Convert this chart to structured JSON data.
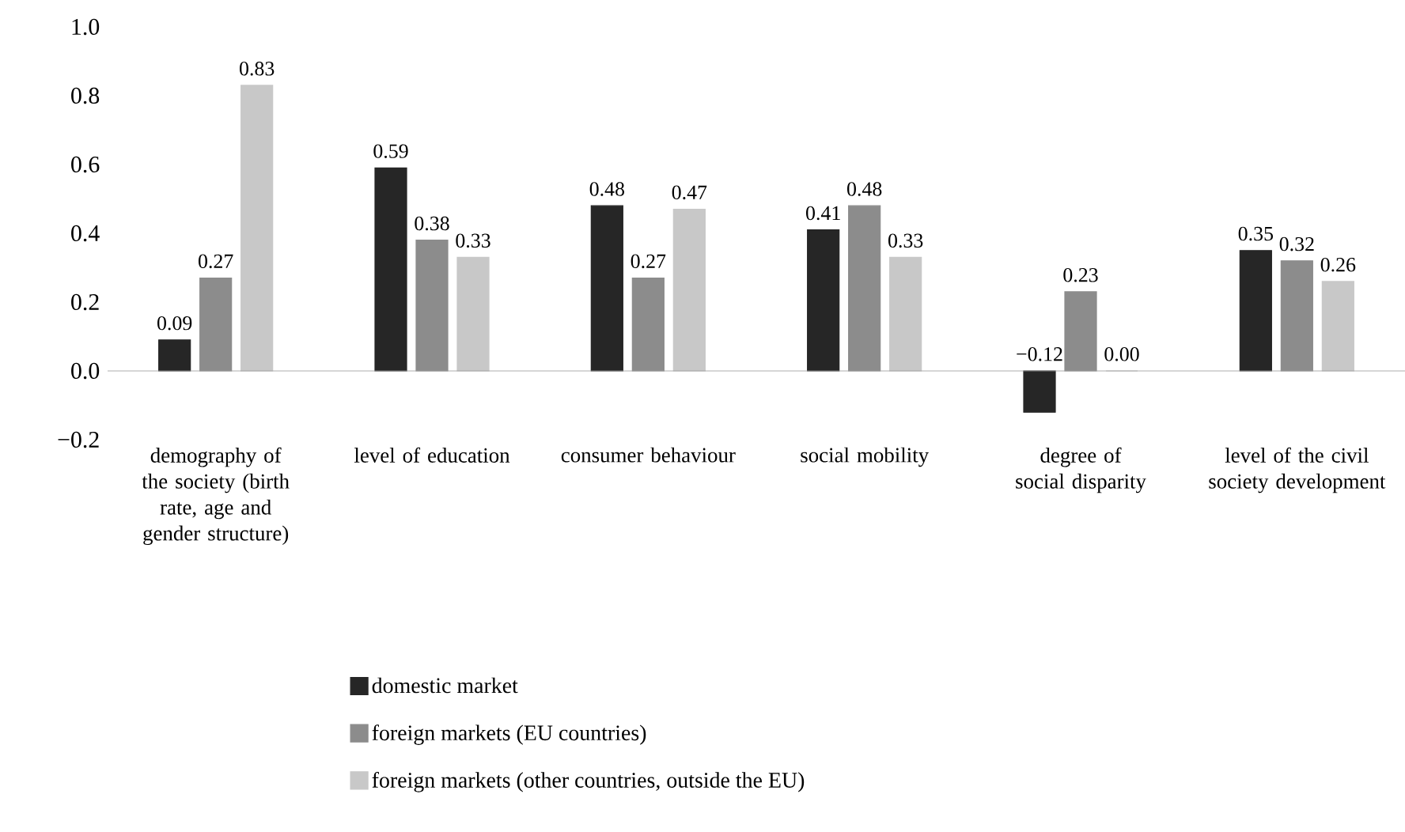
{
  "chart_data": {
    "type": "bar",
    "categories": [
      "demography of the society (birth rate, age and gender structure)",
      "level of education",
      "consumer behaviour",
      "social mobility",
      "degree of social disparity",
      "level of the civil society development"
    ],
    "series": [
      {
        "name": "domestic market",
        "color": "#262626",
        "values": [
          0.09,
          0.59,
          0.48,
          0.41,
          -0.12,
          0.35
        ],
        "value_labels": [
          "0.09",
          "0.59",
          "0.48",
          "0.41",
          "−0.12",
          "0.35"
        ]
      },
      {
        "name": "foreign markets (EU countries)",
        "color": "#8c8c8c",
        "values": [
          0.27,
          0.38,
          0.27,
          0.48,
          0.23,
          0.32
        ],
        "value_labels": [
          "0.27",
          "0.38",
          "0.27",
          "0.48",
          "0.23",
          "0.32"
        ]
      },
      {
        "name": "foreign markets (other countries, outside the EU)",
        "color": "#c8c8c8",
        "values": [
          0.83,
          0.33,
          0.47,
          0.33,
          0.0,
          0.26
        ],
        "value_labels": [
          "0.83",
          "0.33",
          "0.47",
          "0.33",
          "0.00",
          "0.26"
        ]
      }
    ],
    "ylim": [
      -0.2,
      1.0
    ],
    "yticks": [
      {
        "value": -0.2,
        "label": "−0.2"
      },
      {
        "value": 0.0,
        "label": "0.0"
      },
      {
        "value": 0.2,
        "label": "0.2"
      },
      {
        "value": 0.4,
        "label": "0.4"
      },
      {
        "value": 0.6,
        "label": "0.6"
      },
      {
        "value": 0.8,
        "label": "0.8"
      },
      {
        "value": 1.0,
        "label": "1.0"
      }
    ],
    "legend": "bottom"
  }
}
